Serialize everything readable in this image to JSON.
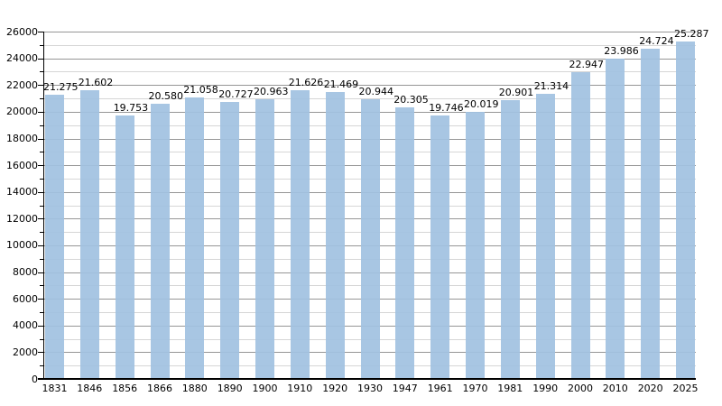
{
  "chart_data": {
    "type": "bar",
    "title": "",
    "xlabel": "",
    "ylabel": "",
    "categories": [
      "1831",
      "1846",
      "1856",
      "1866",
      "1880",
      "1890",
      "1900",
      "1910",
      "1920",
      "1930",
      "1947",
      "1961",
      "1970",
      "1981",
      "1990",
      "2000",
      "2010",
      "2020",
      "2025"
    ],
    "values": [
      21275,
      21602,
      19753,
      20580,
      21058,
      20727,
      20963,
      21626,
      21469,
      20944,
      20305,
      19746,
      20019,
      20901,
      21314,
      22947,
      23986,
      24724,
      25287
    ],
    "value_labels": [
      "21.275",
      "21.602",
      "19.753",
      "20.580",
      "21.058",
      "20.727",
      "20.963",
      "21.626",
      "21.469",
      "20.944",
      "20.305",
      "19.746",
      "20.019",
      "20.901",
      "21.314",
      "22.947",
      "23.986",
      "24.724",
      "25.287"
    ],
    "ylim": [
      0,
      26000
    ],
    "y_major_step": 2000,
    "y_minor_step": 1000,
    "y_tick_labels": [
      "0",
      "2000",
      "4000",
      "6000",
      "8000",
      "10000",
      "12000",
      "14000",
      "16000",
      "18000",
      "20000",
      "22000",
      "24000",
      "26000"
    ],
    "grid": "on",
    "legend": null,
    "colors": {
      "bar_fill": "rgba(161,193,225,0.92)",
      "major_grid": "#969696",
      "minor_grid": "#d6d6d6",
      "axis": "#000000",
      "text": "#000000"
    }
  }
}
